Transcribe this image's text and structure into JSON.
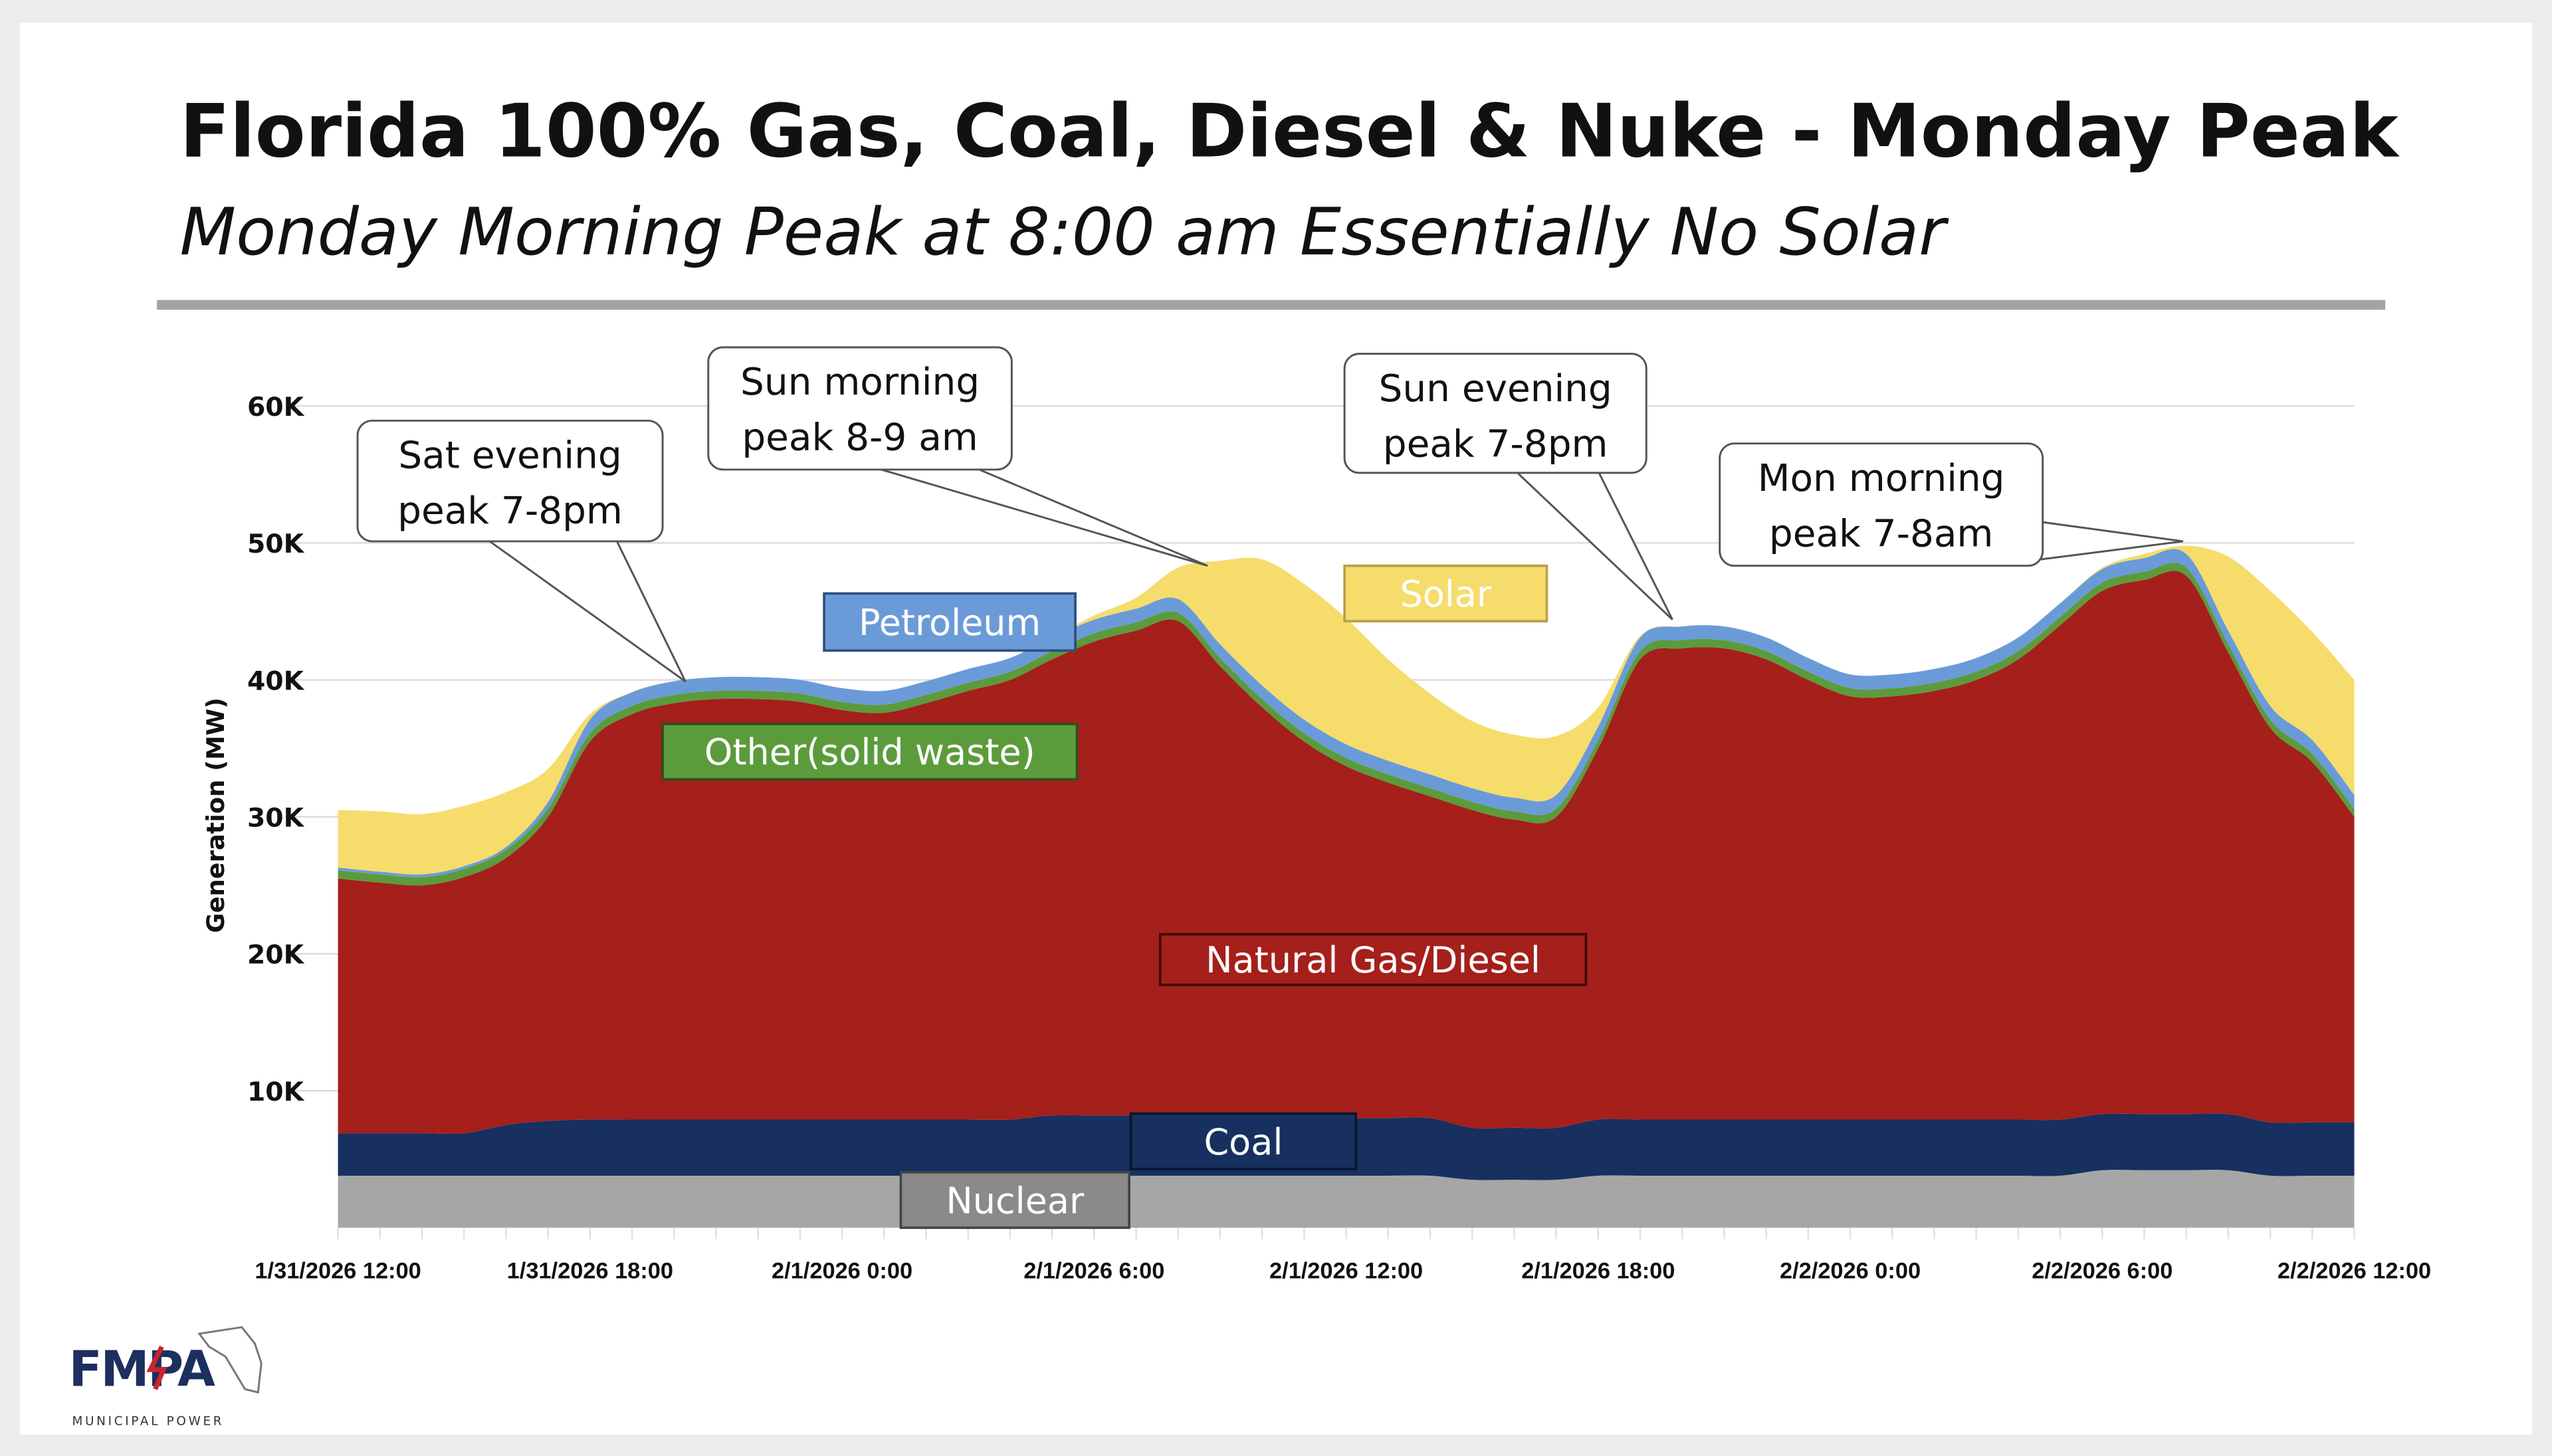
{
  "header": {
    "title": "Florida 100% Gas, Coal, Diesel & Nuke - Monday Peak",
    "subtitle": "Monday Morning Peak at 8:00 am Essentially No Solar"
  },
  "logo": {
    "text": "FMPA",
    "tagline": "MUNICIPAL POWER"
  },
  "chart_data": {
    "type": "area",
    "stacked": true,
    "title": "",
    "xlabel": "",
    "ylabel": "Generation (MW)",
    "ylim": [
      0,
      60000
    ],
    "yticks": [
      10000,
      20000,
      30000,
      40000,
      50000,
      60000
    ],
    "ytick_labels": [
      "10K",
      "20K",
      "30K",
      "40K",
      "50K",
      "60K"
    ],
    "xrange": [
      "1/31/2026 12:00",
      "2/2/2026 12:00"
    ],
    "x_step": "1 hour",
    "xtick_labels": [
      "1/31/2026 12:00",
      "1/31/2026 18:00",
      "2/1/2026 0:00",
      "2/1/2026 6:00",
      "2/1/2026 12:00",
      "2/1/2026 18:00",
      "2/2/2026 0:00",
      "2/2/2026 6:00",
      "2/2/2026 12:00"
    ],
    "grid": true,
    "series": [
      {
        "name": "Nuclear",
        "color": "#a6a6a6",
        "label_color": "#ffffff",
        "values": [
          3800,
          3800,
          3800,
          3800,
          3800,
          3800,
          3800,
          3800,
          3800,
          3800,
          3800,
          3800,
          3800,
          3800,
          3800,
          3800,
          3800,
          3800,
          3800,
          3800,
          3800,
          3800,
          3800,
          3800,
          3800,
          3800,
          3800,
          3500,
          3500,
          3500,
          3800,
          3800,
          3800,
          3800,
          3800,
          3800,
          3800,
          3800,
          3800,
          3800,
          3800,
          3800,
          4200,
          4200,
          4200,
          4200,
          3800,
          3800,
          3800
        ]
      },
      {
        "name": "Coal",
        "color": "#17305f",
        "label_color": "#ffffff",
        "values": [
          3100,
          3100,
          3100,
          3100,
          3700,
          4000,
          4100,
          4100,
          4100,
          4100,
          4100,
          4100,
          4100,
          4100,
          4100,
          4100,
          4100,
          4400,
          4400,
          4400,
          4400,
          4400,
          4200,
          4200,
          4200,
          4200,
          4200,
          3800,
          3800,
          3800,
          4100,
          4100,
          4100,
          4100,
          4100,
          4100,
          4100,
          4100,
          4100,
          4100,
          4100,
          4100,
          4100,
          4100,
          4100,
          4100,
          3900,
          3900,
          3900
        ]
      },
      {
        "name": "Natural Gas/Diesel",
        "color": "#a51f1b",
        "label_color": "#ffffff",
        "values": [
          18600,
          18300,
          18100,
          18700,
          19500,
          22200,
          27600,
          29600,
          30400,
          30700,
          30700,
          30500,
          29900,
          29700,
          30400,
          31300,
          32100,
          33300,
          34600,
          35400,
          36100,
          32800,
          30000,
          27500,
          25700,
          24500,
          23500,
          23200,
          22500,
          22700,
          27100,
          33600,
          34400,
          34400,
          33600,
          32100,
          30900,
          30900,
          31300,
          32100,
          33600,
          36100,
          38200,
          39000,
          39300,
          33700,
          28800,
          26300,
          22300
        ]
      },
      {
        "name": "Other(solid waste)",
        "color": "#5b9b3c",
        "label_color": "#ffffff",
        "values": [
          600,
          600,
          600,
          600,
          600,
          600,
          600,
          600,
          600,
          600,
          600,
          600,
          600,
          600,
          600,
          600,
          600,
          600,
          600,
          600,
          600,
          600,
          600,
          600,
          600,
          600,
          600,
          600,
          600,
          600,
          600,
          600,
          600,
          600,
          600,
          600,
          600,
          600,
          600,
          600,
          600,
          600,
          600,
          600,
          600,
          600,
          600,
          600,
          600
        ]
      },
      {
        "name": "Petroleum",
        "color": "#6a9bd8",
        "label_color": "#ffffff",
        "values": [
          200,
          200,
          200,
          200,
          200,
          500,
          1000,
          1000,
          1000,
          1000,
          1000,
          1000,
          1000,
          1000,
          1000,
          1000,
          1000,
          1000,
          1000,
          1000,
          1000,
          1000,
          1000,
          1000,
          1000,
          1000,
          1000,
          1000,
          1000,
          1000,
          1000,
          1000,
          1000,
          1000,
          1000,
          1000,
          1000,
          1000,
          1000,
          1000,
          1000,
          1000,
          1000,
          1000,
          1000,
          1000,
          1000,
          1000,
          1000
        ]
      },
      {
        "name": "Solar",
        "color": "#f6dc6b",
        "label_color": "#ffffff",
        "values": [
          4200,
          4400,
          4400,
          4400,
          4000,
          2400,
          400,
          0,
          0,
          0,
          0,
          0,
          0,
          0,
          0,
          0,
          0,
          0,
          300,
          800,
          2300,
          6100,
          9200,
          9900,
          9200,
          7400,
          5900,
          4900,
          4600,
          4300,
          1400,
          100,
          0,
          0,
          0,
          0,
          0,
          0,
          0,
          0,
          0,
          0,
          100,
          300,
          600,
          5400,
          8400,
          7900,
          8400
        ]
      }
    ],
    "annotations": [
      {
        "text": [
          "Sat evening",
          "peak 7-8pm"
        ],
        "points_to": "1/31/2026 19:00"
      },
      {
        "text": [
          "Sun morning",
          "peak 8-9 am"
        ],
        "points_to": "2/1/2026 9:00"
      },
      {
        "text": [
          "Sun evening",
          "peak 7-8pm"
        ],
        "points_to": "2/1/2026 19:00"
      },
      {
        "text": [
          "Mon morning",
          "peak 7-8am"
        ],
        "points_to": "2/2/2026 8:00"
      }
    ]
  }
}
